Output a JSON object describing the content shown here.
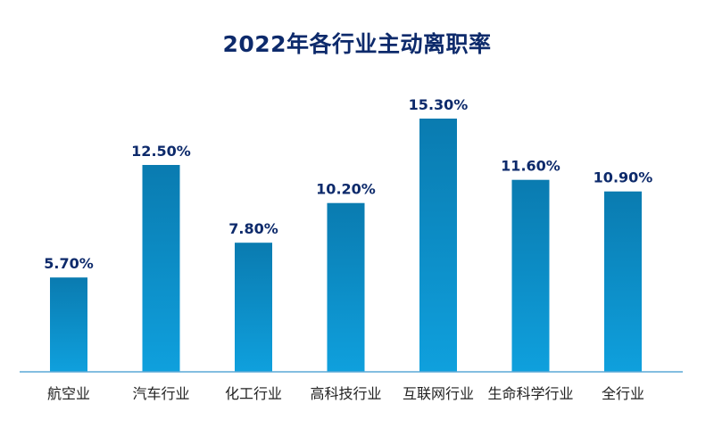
{
  "chart_data": {
    "type": "bar",
    "title": "2022年各行业主动离职率",
    "xlabel": "",
    "ylabel": "",
    "categories": [
      "航空业",
      "汽车行业",
      "化工行业",
      "高科技行业",
      "互联网行业",
      "生命科学行业",
      "全行业"
    ],
    "values": [
      5.7,
      12.5,
      7.8,
      10.2,
      15.3,
      11.6,
      10.9
    ],
    "value_labels": [
      "5.70%",
      "12.50%",
      "7.80%",
      "10.20%",
      "15.30%",
      "11.60%",
      "10.90%"
    ],
    "ylim": [
      0,
      15.3
    ],
    "grid": false,
    "legend": "none",
    "colors": {
      "bar_top": "#0a7bb0",
      "bar_bottom": "#0fa0dd",
      "label": "#0d2a6b",
      "axis": "#5aa9d6",
      "category_text": "#222222"
    }
  }
}
